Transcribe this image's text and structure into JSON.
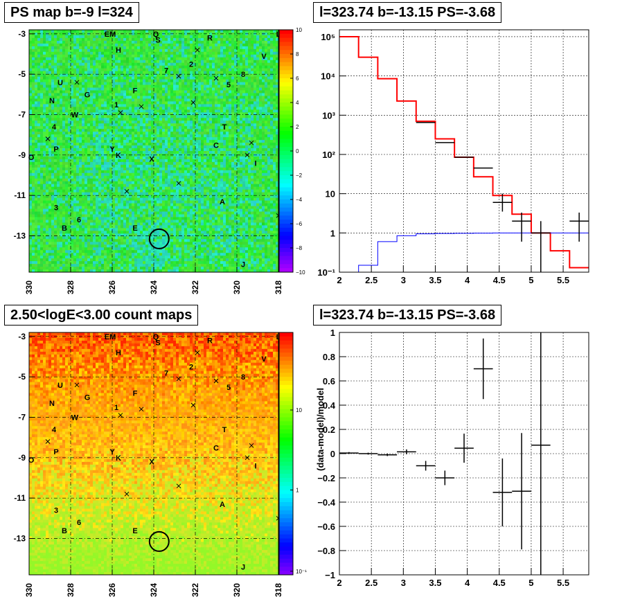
{
  "panels": {
    "top_left_title": "PS map b=-9 l=324",
    "top_right_title": "l=323.74 b=-13.15 PS=-3.68",
    "bottom_left_title": "2.50<logE<3.00 count maps",
    "bottom_right_title": "l=323.74 b=-13.15 PS=-3.68"
  },
  "colors": {
    "map_green": "#2ee83a",
    "map_cyan": "#2ee8b0",
    "count_red": "#ff2a00",
    "count_yellow": "#f0e02a",
    "model_red": "#ff0000",
    "background_blue": "#0000ff",
    "data_black": "#000000"
  },
  "chart_data": [
    {
      "type": "heatmap",
      "title": "PS map b=-9 l=324",
      "x_ticks": [
        "330",
        "328",
        "326",
        "324",
        "322",
        "320",
        "318"
      ],
      "y_ticks": [
        "-3",
        "-5",
        "-7",
        "-9",
        "-11",
        "-13"
      ],
      "xlim": [
        330,
        318
      ],
      "ylim": [
        -14.8,
        -2.8
      ],
      "colorbar_ticks": [
        "10",
        "8",
        "6",
        "4",
        "2",
        "0",
        "−2",
        "−4",
        "−6",
        "−8",
        "−10"
      ],
      "colorbar_range": [
        -10,
        10
      ],
      "source_labels": [
        {
          "t": "EM",
          "l": 326.1,
          "b": -3.0
        },
        {
          "t": "Q",
          "l": 323.9,
          "b": -3.0
        },
        {
          "t": "R",
          "l": 321.3,
          "b": -3.2
        },
        {
          "t": "L",
          "l": 318.0,
          "b": -3.0
        },
        {
          "t": "S",
          "l": 323.8,
          "b": -3.3
        },
        {
          "t": "H",
          "l": 325.7,
          "b": -3.8
        },
        {
          "t": "V",
          "l": 318.7,
          "b": -4.1
        },
        {
          "t": "2",
          "l": 322.2,
          "b": -4.5
        },
        {
          "t": "7",
          "l": 323.4,
          "b": -4.8
        },
        {
          "t": "8",
          "l": 319.7,
          "b": -5.0
        },
        {
          "t": "5",
          "l": 320.4,
          "b": -5.5
        },
        {
          "t": "U",
          "l": 328.5,
          "b": -5.4
        },
        {
          "t": "G",
          "l": 327.2,
          "b": -6.0
        },
        {
          "t": "F",
          "l": 324.9,
          "b": -5.8
        },
        {
          "t": "N",
          "l": 328.9,
          "b": -6.3
        },
        {
          "t": "1",
          "l": 325.8,
          "b": -6.5
        },
        {
          "t": "W",
          "l": 327.8,
          "b": -7.0
        },
        {
          "t": "4",
          "l": 328.8,
          "b": -7.6
        },
        {
          "t": "T",
          "l": 320.6,
          "b": -7.6
        },
        {
          "t": "P",
          "l": 328.7,
          "b": -8.7
        },
        {
          "t": "Y",
          "l": 326.0,
          "b": -8.7
        },
        {
          "t": "C",
          "l": 321.0,
          "b": -8.5
        },
        {
          "t": "K",
          "l": 325.7,
          "b": -9.0
        },
        {
          "t": "X",
          "l": 324.1,
          "b": -9.2
        },
        {
          "t": "I",
          "l": 319.1,
          "b": -9.4
        },
        {
          "t": "O",
          "l": 329.9,
          "b": -9.1
        },
        {
          "t": "A",
          "l": 320.7,
          "b": -11.3
        },
        {
          "t": "3",
          "l": 328.7,
          "b": -11.6
        },
        {
          "t": "6",
          "l": 327.6,
          "b": -12.2
        },
        {
          "t": "B",
          "l": 328.3,
          "b": -12.6
        },
        {
          "t": "E",
          "l": 324.9,
          "b": -12.6
        },
        {
          "t": "Z",
          "l": 317.9,
          "b": -12.0
        },
        {
          "t": "J",
          "l": 319.7,
          "b": -14.4
        }
      ],
      "crosses": [
        {
          "l": 329.1,
          "b": -8.2
        },
        {
          "l": 327.7,
          "b": -5.4
        },
        {
          "l": 325.6,
          "b": -6.9
        },
        {
          "l": 324.6,
          "b": -6.6
        },
        {
          "l": 322.8,
          "b": -5.1
        },
        {
          "l": 322.1,
          "b": -6.4
        },
        {
          "l": 321.0,
          "b": -5.2
        },
        {
          "l": 321.9,
          "b": -3.8
        },
        {
          "l": 319.5,
          "b": -9.0
        },
        {
          "l": 319.3,
          "b": -8.4
        },
        {
          "l": 322.8,
          "b": -10.4
        },
        {
          "l": 325.3,
          "b": -10.8
        },
        {
          "l": 318.0,
          "b": -12.0
        }
      ],
      "circle": {
        "l": 323.74,
        "b": -13.15
      }
    },
    {
      "type": "line",
      "title": "l=323.74 b=-13.15 PS=-3.68",
      "x_ticks": [
        "2",
        "2.5",
        "3",
        "3.5",
        "4",
        "4.5",
        "5",
        "5.5"
      ],
      "y_ticks": [
        "10⁻¹",
        "1",
        "10",
        "10²",
        "10³",
        "10⁴",
        "10⁵"
      ],
      "xlim": [
        2,
        5.9
      ],
      "ylim": [
        0.1,
        150000
      ],
      "y_log": true,
      "grid": true,
      "series": [
        {
          "bin_edges": [
            2.0,
            2.3,
            2.6,
            2.9,
            3.2,
            3.5,
            3.8,
            4.1,
            4.4,
            4.7,
            5.0,
            5.3,
            5.6,
            5.9
          ],
          "values": [
            100000,
            30000,
            8500,
            2300,
            700,
            250,
            85,
            27,
            9,
            3,
            1,
            0.35,
            0.13
          ],
          "color": "#ff0000"
        },
        {
          "bin_edges": [
            2.0,
            2.3,
            2.6,
            2.9,
            3.2,
            3.5,
            3.8,
            4.1,
            4.4,
            4.7,
            5.0,
            5.3,
            5.6,
            5.9
          ],
          "values": [
            0.1,
            0.15,
            0.6,
            0.85,
            0.95,
            0.97,
            0.98,
            0.99,
            1,
            1,
            1,
            1,
            1
          ],
          "color": "#0000ff"
        }
      ],
      "points": [
        {
          "x": 3.35,
          "y": 650,
          "xerr": 0.15
        },
        {
          "x": 3.65,
          "y": 200,
          "xerr": 0.15
        },
        {
          "x": 3.95,
          "y": 85,
          "xerr": 0.15
        },
        {
          "x": 4.25,
          "y": 45,
          "xerr": 0.15
        },
        {
          "x": 4.55,
          "y": 6,
          "xerr": 0.15,
          "ylo": 3.5,
          "yhi": 10
        },
        {
          "x": 4.85,
          "y": 2,
          "xerr": 0.15,
          "ylo": 0.6,
          "yhi": 3.3
        },
        {
          "x": 5.15,
          "y": 1,
          "xerr": 0.15,
          "ylo": 0.1,
          "yhi": 2
        },
        {
          "x": 5.75,
          "y": 2,
          "xerr": 0.15,
          "ylo": 0.6,
          "yhi": 3.3
        }
      ]
    },
    {
      "type": "heatmap",
      "title": "2.50<logE<3.00 count maps",
      "x_ticks": [
        "330",
        "328",
        "326",
        "324",
        "322",
        "320",
        "318"
      ],
      "y_ticks": [
        "-3",
        "-5",
        "-7",
        "-9",
        "-11",
        "-13"
      ],
      "xlim": [
        330,
        318
      ],
      "ylim": [
        -14.8,
        -2.8
      ],
      "colorbar_ticks": [
        "10",
        "1",
        "10⁻¹"
      ],
      "colorbar_log": true
    },
    {
      "type": "scatter",
      "title": "l=323.74 b=-13.15 PS=-3.68",
      "ylabel": "(data-model)/model",
      "x_ticks": [
        "2",
        "2.5",
        "3",
        "3.5",
        "4",
        "4.5",
        "5",
        "5.5"
      ],
      "y_ticks": [
        "1",
        "0.8",
        "0.6",
        "0.4",
        "0.2",
        "0",
        "−0.2",
        "−0.4",
        "−0.6",
        "−0.8",
        "−1"
      ],
      "xlim": [
        2,
        5.9
      ],
      "ylim": [
        -1,
        1
      ],
      "grid": true,
      "points": [
        {
          "x": 2.15,
          "y": 0.005,
          "xerr": 0.15,
          "yerr": 0.008
        },
        {
          "x": 2.45,
          "y": 0.0,
          "xerr": 0.15,
          "yerr": 0.008
        },
        {
          "x": 2.75,
          "y": -0.01,
          "xerr": 0.15,
          "yerr": 0.01
        },
        {
          "x": 3.05,
          "y": 0.015,
          "xerr": 0.15,
          "yerr": 0.02
        },
        {
          "x": 3.35,
          "y": -0.1,
          "xerr": 0.15,
          "yerr": 0.04
        },
        {
          "x": 3.65,
          "y": -0.2,
          "xerr": 0.15,
          "yerr": 0.06
        },
        {
          "x": 3.95,
          "y": 0.045,
          "xerr": 0.15,
          "yerr": 0.12
        },
        {
          "x": 4.25,
          "y": 0.7,
          "xerr": 0.15,
          "yerr": 0.25
        },
        {
          "x": 4.55,
          "y": -0.32,
          "xerr": 0.15,
          "yerr": 0.28
        },
        {
          "x": 4.85,
          "y": -0.31,
          "xerr": 0.15,
          "yerr": 0.48
        },
        {
          "x": 5.15,
          "y": 0.07,
          "xerr": 0.15,
          "yerr": 1.1
        }
      ]
    }
  ]
}
